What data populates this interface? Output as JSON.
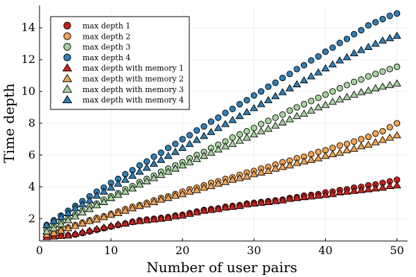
{
  "chart_data": {
    "type": "scatter",
    "xlabel": "Number of user pairs",
    "ylabel": "Time depth",
    "xlim": [
      0,
      51.5
    ],
    "ylim": [
      0.6,
      15.4
    ],
    "xticks": [
      0,
      10,
      20,
      30,
      40,
      50
    ],
    "yticks": [
      2,
      4,
      6,
      8,
      10,
      12,
      14
    ],
    "grid": true,
    "legend_position": "top-left",
    "x": [
      1,
      2,
      3,
      4,
      5,
      6,
      7,
      8,
      9,
      10,
      11,
      12,
      13,
      14,
      15,
      16,
      17,
      18,
      19,
      20,
      21,
      22,
      23,
      24,
      25,
      26,
      27,
      28,
      29,
      30,
      31,
      32,
      33,
      34,
      35,
      36,
      37,
      38,
      39,
      40,
      41,
      42,
      43,
      44,
      45,
      46,
      47,
      48,
      49,
      50
    ],
    "series": [
      {
        "name": "max depth 1",
        "marker": "circle",
        "color": "#cc1f1a",
        "values": [
          0.9,
          0.92,
          0.94,
          0.96,
          1.0,
          1.1,
          1.2,
          1.3,
          1.4,
          1.5,
          1.6,
          1.7,
          1.8,
          1.9,
          1.95,
          2.0,
          2.05,
          2.1,
          2.2,
          2.25,
          2.35,
          2.45,
          2.55,
          2.6,
          2.65,
          2.75,
          2.8,
          2.85,
          2.95,
          3.0,
          3.05,
          3.1,
          3.15,
          3.2,
          3.3,
          3.35,
          3.45,
          3.5,
          3.55,
          3.65,
          3.7,
          3.8,
          3.85,
          3.95,
          4.0,
          4.1,
          4.15,
          4.25,
          4.35,
          4.45
        ]
      },
      {
        "name": "max depth 2",
        "marker": "circle",
        "color": "#f5a24b",
        "values": [
          1.05,
          1.15,
          1.3,
          1.45,
          1.6,
          1.75,
          1.9,
          2.05,
          2.15,
          2.3,
          2.45,
          2.6,
          2.75,
          2.85,
          3.0,
          3.15,
          3.3,
          3.4,
          3.55,
          3.7,
          3.85,
          3.95,
          4.1,
          4.25,
          4.35,
          4.5,
          4.6,
          4.75,
          4.9,
          5.0,
          5.15,
          5.25,
          5.4,
          5.55,
          5.65,
          5.8,
          5.9,
          6.05,
          6.2,
          6.3,
          6.45,
          6.6,
          6.7,
          6.85,
          7.0,
          7.15,
          7.35,
          7.5,
          7.75,
          8.0
        ]
      },
      {
        "name": "max depth 3",
        "marker": "circle",
        "color": "#a3d39c",
        "values": [
          1.3,
          1.5,
          1.75,
          2.0,
          2.25,
          2.5,
          2.75,
          2.95,
          3.2,
          3.4,
          3.6,
          3.85,
          4.05,
          4.3,
          4.5,
          4.7,
          4.95,
          5.15,
          5.35,
          5.55,
          5.8,
          6.0,
          6.2,
          6.45,
          6.65,
          6.85,
          7.1,
          7.3,
          7.5,
          7.7,
          7.95,
          8.15,
          8.35,
          8.55,
          8.8,
          9.0,
          9.2,
          9.4,
          9.6,
          9.8,
          10.0,
          10.2,
          10.4,
          10.6,
          10.75,
          10.95,
          11.1,
          11.25,
          11.4,
          11.55
        ]
      },
      {
        "name": "max depth 4",
        "marker": "circle",
        "color": "#2b80b9",
        "values": [
          1.6,
          1.9,
          2.2,
          2.5,
          2.8,
          3.1,
          3.4,
          3.7,
          3.95,
          4.25,
          4.5,
          4.8,
          5.05,
          5.35,
          5.6,
          5.9,
          6.15,
          6.45,
          6.7,
          7.0,
          7.25,
          7.55,
          7.8,
          8.1,
          8.35,
          8.65,
          8.9,
          9.2,
          9.45,
          9.75,
          10.0,
          10.3,
          10.55,
          10.85,
          11.1,
          11.4,
          11.65,
          11.95,
          12.2,
          12.5,
          12.75,
          13.05,
          13.3,
          13.6,
          13.85,
          14.15,
          14.35,
          14.55,
          14.75,
          14.9
        ]
      },
      {
        "name": "max depth with memory 1",
        "marker": "triangle",
        "color": "#cc1f1a",
        "values": [
          0.85,
          0.88,
          0.92,
          0.95,
          1.05,
          1.15,
          1.25,
          1.35,
          1.45,
          1.55,
          1.65,
          1.7,
          1.8,
          1.85,
          1.9,
          1.95,
          2.0,
          2.05,
          2.15,
          2.2,
          2.3,
          2.4,
          2.5,
          2.55,
          2.6,
          2.7,
          2.75,
          2.8,
          2.9,
          2.95,
          3.0,
          3.05,
          3.1,
          3.15,
          3.25,
          3.3,
          3.35,
          3.4,
          3.45,
          3.5,
          3.55,
          3.65,
          3.7,
          3.75,
          3.8,
          3.85,
          3.9,
          3.95,
          4.05,
          4.1
        ]
      },
      {
        "name": "max depth with memory 2",
        "marker": "triangle",
        "color": "#f5a24b",
        "values": [
          1.0,
          1.1,
          1.25,
          1.4,
          1.55,
          1.7,
          1.85,
          1.95,
          2.1,
          2.25,
          2.35,
          2.5,
          2.65,
          2.8,
          2.9,
          3.05,
          3.2,
          3.3,
          3.45,
          3.55,
          3.7,
          3.8,
          3.95,
          4.05,
          4.2,
          4.3,
          4.45,
          4.55,
          4.65,
          4.8,
          4.9,
          5.0,
          5.15,
          5.25,
          5.35,
          5.5,
          5.6,
          5.7,
          5.8,
          5.95,
          6.05,
          6.15,
          6.3,
          6.4,
          6.55,
          6.65,
          6.8,
          6.95,
          7.1,
          7.25
        ]
      },
      {
        "name": "max depth with memory 3",
        "marker": "triangle",
        "color": "#a3d39c",
        "values": [
          1.2,
          1.4,
          1.65,
          1.9,
          2.15,
          2.4,
          2.6,
          2.85,
          3.05,
          3.3,
          3.5,
          3.7,
          3.9,
          4.15,
          4.35,
          4.55,
          4.75,
          4.95,
          5.15,
          5.35,
          5.55,
          5.75,
          5.95,
          6.15,
          6.35,
          6.55,
          6.7,
          6.9,
          7.1,
          7.3,
          7.5,
          7.65,
          7.85,
          8.05,
          8.25,
          8.45,
          8.6,
          8.8,
          9.0,
          9.15,
          9.35,
          9.5,
          9.65,
          9.8,
          9.95,
          10.05,
          10.2,
          10.3,
          10.4,
          10.5
        ]
      },
      {
        "name": "max depth with memory 4",
        "marker": "triangle",
        "color": "#2b80b9",
        "values": [
          1.6,
          1.85,
          2.1,
          2.35,
          2.65,
          2.9,
          3.15,
          3.45,
          3.7,
          3.95,
          4.2,
          4.45,
          4.7,
          4.95,
          5.2,
          5.45,
          5.7,
          5.95,
          6.2,
          6.45,
          6.7,
          6.95,
          7.2,
          7.45,
          7.7,
          7.95,
          8.2,
          8.45,
          8.7,
          8.95,
          9.2,
          9.45,
          9.7,
          9.95,
          10.2,
          10.45,
          10.7,
          10.95,
          11.2,
          11.45,
          11.7,
          11.95,
          12.15,
          12.4,
          12.6,
          12.8,
          13.0,
          13.2,
          13.35,
          13.5
        ]
      }
    ]
  }
}
